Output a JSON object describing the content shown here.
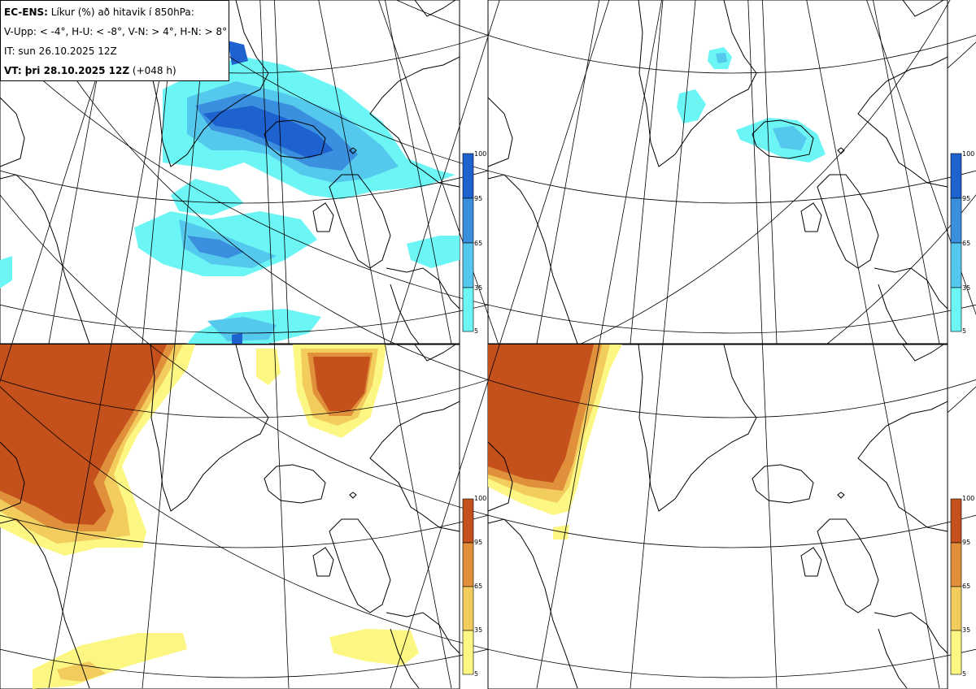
{
  "header": {
    "model_label": "EC-ENS:",
    "title_rest": "Líkur (%) að hitavik í 850hPa:",
    "thresholds": "V-Upp: < -4°, H-U: < -8°, V-N: > 4°, H-N: > 8°",
    "init_time": "IT: sun 26.10.2025 12Z",
    "valid_label": "VT: þri 28.10.2025 12Z",
    "valid_offset": "(+048 h)"
  },
  "colorbar_ticks": [
    "100",
    "95",
    "65",
    "35",
    "5"
  ],
  "colors": {
    "cold": [
      "#6cf5f5",
      "#55c8ee",
      "#3a90de",
      "#1e62cf"
    ],
    "warm": [
      "#fbf782",
      "#f2cd5e",
      "#e08f3a",
      "#c4511c"
    ],
    "coast": "#000000",
    "grid": "#000000"
  },
  "panels": [
    {
      "name": "panel-cold-4",
      "scheme": "cold"
    },
    {
      "name": "panel-cold-8",
      "scheme": "cold"
    },
    {
      "name": "panel-warm-4",
      "scheme": "warm"
    },
    {
      "name": "panel-warm-8",
      "scheme": "warm"
    }
  ]
}
